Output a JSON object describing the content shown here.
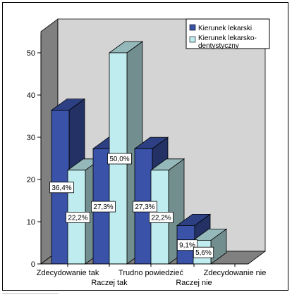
{
  "chart_data": {
    "type": "bar",
    "style": "3d-clustered",
    "categories": [
      "Zdecydowanie tak",
      "Raczej tak",
      "Trudno powiedzieć",
      "Raczej nie",
      "Zdecydowanie nie"
    ],
    "series": [
      {
        "name": "Kierunek lekarski",
        "color": "#3a52a8",
        "values": [
          36.4,
          27.3,
          27.3,
          9.1,
          0
        ],
        "labels": [
          "36,4%",
          "27,3%",
          "27,3%",
          "9,1%",
          ""
        ]
      },
      {
        "name": "Kierunek lekarsko-dentystyczny",
        "color": "#bfecef",
        "values": [
          22.2,
          50.0,
          22.2,
          5.6,
          0
        ],
        "labels": [
          "22,2%",
          "50,0%",
          "22,2%",
          "5,6%",
          ""
        ]
      }
    ],
    "yticks": [
      "0",
      "10",
      "20",
      "30",
      "40",
      "50"
    ],
    "ylim": [
      0,
      55
    ],
    "legend_position": "top-right",
    "grid": false,
    "wall_color": "#d4d4d4",
    "floor_color": "#808080"
  }
}
